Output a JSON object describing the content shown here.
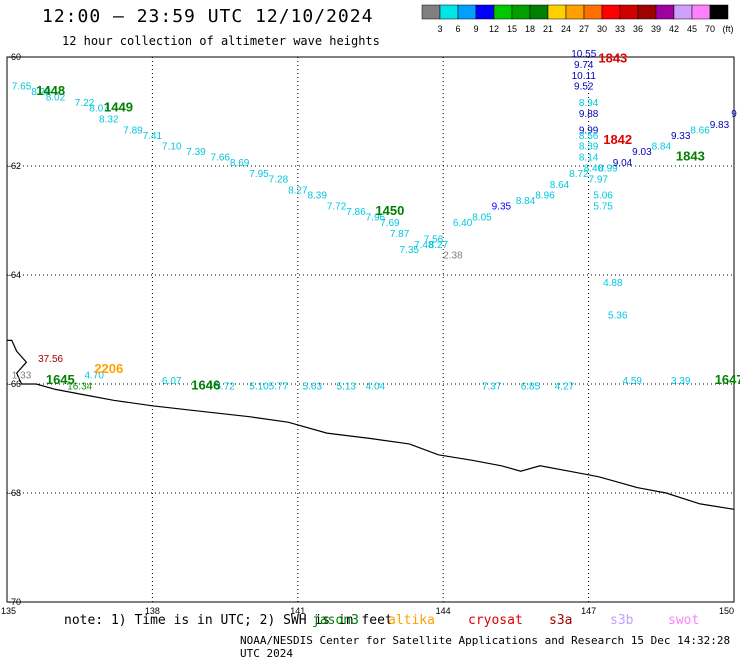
{
  "header": {
    "title": "12:00 — 23:59 UTC 12/10/2024",
    "subtitle": "12 hour collection of altimeter wave heights"
  },
  "colorbar": {
    "colors": [
      "#808080",
      "#00e5e5",
      "#00a0ff",
      "#0000ff",
      "#00c800",
      "#00a000",
      "#008000",
      "#ffd000",
      "#ffa000",
      "#ff7000",
      "#ff0000",
      "#d00000",
      "#a00000",
      "#a000a0",
      "#d0a0ff",
      "#ff80ff",
      "#000000"
    ],
    "labels": [
      "3",
      "6",
      "9",
      "12",
      "15",
      "18",
      "21",
      "24",
      "27",
      "30",
      "33",
      "36",
      "39",
      "42",
      "45",
      "70",
      "(ft)"
    ]
  },
  "axes": {
    "lat_labels": [
      "-60",
      "-62",
      "-64",
      "-66",
      "-68",
      "-70"
    ],
    "lon_labels": [
      "135",
      "138",
      "141",
      "144",
      "147",
      "150"
    ]
  },
  "chart_data": {
    "type": "scatter",
    "points": [
      {
        "lon": 135.3,
        "lat": -60.6,
        "v": "7.65",
        "c": "#00c8e0"
      },
      {
        "lon": 135.7,
        "lat": -60.7,
        "v": "8.29",
        "c": "#00c8e0"
      },
      {
        "lon": 136.0,
        "lat": -60.8,
        "v": "8.02",
        "c": "#00c8e0"
      },
      {
        "lon": 136.6,
        "lat": -60.9,
        "v": "7.22",
        "c": "#00c8e0"
      },
      {
        "lon": 136.9,
        "lat": -61.0,
        "v": "8.07",
        "c": "#00c8e0"
      },
      {
        "lon": 137.1,
        "lat": -61.2,
        "v": "8.32",
        "c": "#00c8e0"
      },
      {
        "lon": 137.6,
        "lat": -61.4,
        "v": "7.89",
        "c": "#00c8e0"
      },
      {
        "lon": 138.0,
        "lat": -61.5,
        "v": "7.41",
        "c": "#00c8e0"
      },
      {
        "lon": 138.4,
        "lat": -61.7,
        "v": "7.10",
        "c": "#00c8e0"
      },
      {
        "lon": 138.9,
        "lat": -61.8,
        "v": "7.39",
        "c": "#00c8e0"
      },
      {
        "lon": 139.4,
        "lat": -61.9,
        "v": "7.66",
        "c": "#00c8e0"
      },
      {
        "lon": 139.8,
        "lat": -62.0,
        "v": "8.69",
        "c": "#00c8e0"
      },
      {
        "lon": 140.2,
        "lat": -62.2,
        "v": "7.95",
        "c": "#00c8e0"
      },
      {
        "lon": 140.6,
        "lat": -62.3,
        "v": "7.28",
        "c": "#00c8e0"
      },
      {
        "lon": 141.0,
        "lat": -62.5,
        "v": "8.27",
        "c": "#00c8e0"
      },
      {
        "lon": 141.4,
        "lat": -62.6,
        "v": "8.39",
        "c": "#00c8e0"
      },
      {
        "lon": 141.8,
        "lat": -62.8,
        "v": "7.72",
        "c": "#00c8e0"
      },
      {
        "lon": 142.2,
        "lat": -62.9,
        "v": "7.86",
        "c": "#00c8e0"
      },
      {
        "lon": 142.6,
        "lat": -63.0,
        "v": "7.96",
        "c": "#00c8e0"
      },
      {
        "lon": 142.9,
        "lat": -63.1,
        "v": "7.69",
        "c": "#00c8e0"
      },
      {
        "lon": 143.1,
        "lat": -63.3,
        "v": "7.87",
        "c": "#00c8e0"
      },
      {
        "lon": 143.3,
        "lat": -63.6,
        "v": "7.35",
        "c": "#00c8e0"
      },
      {
        "lon": 143.6,
        "lat": -63.5,
        "v": "7.48",
        "c": "#00c8e0"
      },
      {
        "lon": 143.8,
        "lat": -63.4,
        "v": "7.56",
        "c": "#00c8e0"
      },
      {
        "lon": 143.9,
        "lat": -63.5,
        "v": "8.27",
        "c": "#00c8e0"
      },
      {
        "lon": 144.2,
        "lat": -63.7,
        "v": "2.38",
        "c": "#808080"
      },
      {
        "lon": 144.4,
        "lat": -63.1,
        "v": "6.40",
        "c": "#00c8e0"
      },
      {
        "lon": 144.8,
        "lat": -63.0,
        "v": "8.05",
        "c": "#00c8e0"
      },
      {
        "lon": 145.2,
        "lat": -62.8,
        "v": "9.35",
        "c": "#0000ff"
      },
      {
        "lon": 145.7,
        "lat": -62.7,
        "v": "8.84",
        "c": "#00c8e0"
      },
      {
        "lon": 146.1,
        "lat": -62.6,
        "v": "8.96",
        "c": "#00c8e0"
      },
      {
        "lon": 146.4,
        "lat": -62.4,
        "v": "8.64",
        "c": "#00c8e0"
      },
      {
        "lon": 146.8,
        "lat": -62.2,
        "v": "8.72",
        "c": "#00c8e0"
      },
      {
        "lon": 147.1,
        "lat": -62.1,
        "v": "8.40",
        "c": "#00c8e0"
      },
      {
        "lon": 147.2,
        "lat": -62.3,
        "v": "7.97",
        "c": "#00c8e0"
      },
      {
        "lon": 147.3,
        "lat": -62.6,
        "v": "5.06",
        "c": "#00c8e0"
      },
      {
        "lon": 147.3,
        "lat": -62.8,
        "v": "5.75",
        "c": "#00c8e0"
      },
      {
        "lon": 146.9,
        "lat": -60.0,
        "v": "10.55",
        "c": "#0000c0"
      },
      {
        "lon": 146.9,
        "lat": -60.2,
        "v": "9.74",
        "c": "#0000c0"
      },
      {
        "lon": 146.9,
        "lat": -60.4,
        "v": "10.11",
        "c": "#0000c0"
      },
      {
        "lon": 146.9,
        "lat": -60.6,
        "v": "9.52",
        "c": "#0000c0"
      },
      {
        "lon": 147.0,
        "lat": -60.9,
        "v": "8.94",
        "c": "#00c8e0"
      },
      {
        "lon": 147.0,
        "lat": -61.1,
        "v": "9.88",
        "c": "#0000c0"
      },
      {
        "lon": 147.0,
        "lat": -61.4,
        "v": "9.99",
        "c": "#0000c0"
      },
      {
        "lon": 147.0,
        "lat": -61.5,
        "v": "8.56",
        "c": "#00c8e0"
      },
      {
        "lon": 147.0,
        "lat": -61.7,
        "v": "8.39",
        "c": "#00c8e0"
      },
      {
        "lon": 147.0,
        "lat": -61.9,
        "v": "8.14",
        "c": "#00c8e0"
      },
      {
        "lon": 147.4,
        "lat": -62.1,
        "v": "8.99",
        "c": "#00c8e0"
      },
      {
        "lon": 147.7,
        "lat": -62.0,
        "v": "9.04",
        "c": "#0000c0"
      },
      {
        "lon": 148.1,
        "lat": -61.8,
        "v": "9.03",
        "c": "#0000c0"
      },
      {
        "lon": 148.5,
        "lat": -61.7,
        "v": "8.84",
        "c": "#00c8e0"
      },
      {
        "lon": 148.9,
        "lat": -61.5,
        "v": "9.33",
        "c": "#0000c0"
      },
      {
        "lon": 149.3,
        "lat": -61.4,
        "v": "8.66",
        "c": "#00c8e0"
      },
      {
        "lon": 149.7,
        "lat": -61.3,
        "v": "9.83",
        "c": "#0000c0"
      },
      {
        "lon": 150.0,
        "lat": -61.1,
        "v": "9",
        "c": "#0000c0"
      },
      {
        "lon": 147.5,
        "lat": -64.2,
        "v": "4.88",
        "c": "#00c8e0"
      },
      {
        "lon": 147.6,
        "lat": -64.8,
        "v": "5.36",
        "c": "#00c8e0"
      },
      {
        "lon": 135.3,
        "lat": -65.9,
        "v": "1.33",
        "c": "#808080"
      },
      {
        "lon": 135.9,
        "lat": -65.6,
        "v": "37.56",
        "c": "#a00000"
      },
      {
        "lon": 136.8,
        "lat": -65.9,
        "v": "4.70",
        "c": "#00c8e0"
      },
      {
        "lon": 136.5,
        "lat": -66.1,
        "v": "16.34",
        "c": "#00a000"
      },
      {
        "lon": 138.4,
        "lat": -66.0,
        "v": "6.07",
        "c": "#00c8e0"
      },
      {
        "lon": 139.5,
        "lat": -66.1,
        "v": "5.72",
        "c": "#00c8e0"
      },
      {
        "lon": 140.2,
        "lat": -66.1,
        "v": "5.10",
        "c": "#00c8e0"
      },
      {
        "lon": 140.6,
        "lat": -66.1,
        "v": "5.77",
        "c": "#00c8e0"
      },
      {
        "lon": 141.3,
        "lat": -66.1,
        "v": "5.63",
        "c": "#00c8e0"
      },
      {
        "lon": 142.0,
        "lat": -66.1,
        "v": "5.13",
        "c": "#00c8e0"
      },
      {
        "lon": 142.6,
        "lat": -66.1,
        "v": "4.04",
        "c": "#00c8e0"
      },
      {
        "lon": 145.0,
        "lat": -66.1,
        "v": "7.37",
        "c": "#00c8e0"
      },
      {
        "lon": 145.8,
        "lat": -66.1,
        "v": "6.85",
        "c": "#00c8e0"
      },
      {
        "lon": 146.5,
        "lat": -66.1,
        "v": "4.27",
        "c": "#00c8e0"
      },
      {
        "lon": 147.9,
        "lat": -66.0,
        "v": "4.59",
        "c": "#00c8e0"
      },
      {
        "lon": 148.9,
        "lat": -66.0,
        "v": "3.39",
        "c": "#00c8e0"
      }
    ],
    "passes": [
      {
        "lon": 135.9,
        "lat": -60.7,
        "t": "1448",
        "c": "#008000"
      },
      {
        "lon": 137.3,
        "lat": -61.0,
        "t": "1449",
        "c": "#008000"
      },
      {
        "lon": 142.9,
        "lat": -62.9,
        "t": "1450",
        "c": "#008000"
      },
      {
        "lon": 147.5,
        "lat": -60.1,
        "t": "1843",
        "c": "#e00000"
      },
      {
        "lon": 147.6,
        "lat": -61.6,
        "t": "1842",
        "c": "#e00000"
      },
      {
        "lon": 149.1,
        "lat": -61.9,
        "t": "1843",
        "c": "#008000"
      },
      {
        "lon": 137.1,
        "lat": -65.8,
        "t": "2206",
        "c": "#ffa000"
      },
      {
        "lon": 136.1,
        "lat": -66.0,
        "t": "1645",
        "c": "#008000"
      },
      {
        "lon": 139.1,
        "lat": -66.1,
        "t": "1646",
        "c": "#008000"
      },
      {
        "lon": 149.9,
        "lat": -66.0,
        "t": "1647",
        "c": "#008000"
      }
    ]
  },
  "coastline": [
    [
      135.0,
      -65.2
    ],
    [
      135.1,
      -65.2
    ],
    [
      135.2,
      -65.4
    ],
    [
      135.4,
      -65.6
    ],
    [
      135.2,
      -65.8
    ],
    [
      135.3,
      -66.0
    ],
    [
      135.6,
      -66.0
    ],
    [
      136.0,
      -66.1
    ],
    [
      136.6,
      -66.2
    ],
    [
      137.2,
      -66.3
    ],
    [
      138.0,
      -66.4
    ],
    [
      139.0,
      -66.5
    ],
    [
      140.0,
      -66.6
    ],
    [
      140.8,
      -66.7
    ],
    [
      141.6,
      -66.9
    ],
    [
      142.5,
      -67.0
    ],
    [
      143.3,
      -67.1
    ],
    [
      143.9,
      -67.3
    ],
    [
      144.6,
      -67.4
    ],
    [
      145.2,
      -67.5
    ],
    [
      145.6,
      -67.6
    ],
    [
      146.0,
      -67.5
    ],
    [
      146.6,
      -67.6
    ],
    [
      147.2,
      -67.7
    ],
    [
      147.6,
      -67.8
    ],
    [
      148.0,
      -67.9
    ],
    [
      148.6,
      -68.0
    ],
    [
      149.3,
      -68.2
    ],
    [
      150.0,
      -68.3
    ]
  ],
  "footer": {
    "note": "note: 1) Time is in UTC; 2) SWH is in feet",
    "credit": "NOAA/NESDIS Center for Satellite Applications and Research   15 Dec 14:32:28 UTC 2024"
  },
  "legend": [
    {
      "name": "jason3",
      "c": "#008000"
    },
    {
      "name": "altika",
      "c": "#ffa000"
    },
    {
      "name": "cryosat",
      "c": "#e00000"
    },
    {
      "name": "s3a",
      "c": "#a00000"
    },
    {
      "name": "s3b",
      "c": "#c0a0ff"
    },
    {
      "name": "swot",
      "c": "#ff80ff"
    }
  ]
}
